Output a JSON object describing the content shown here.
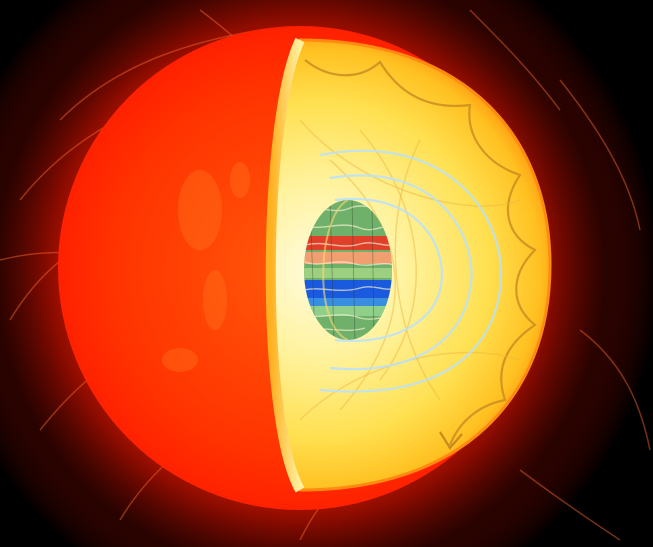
{
  "image": {
    "subject": "star-cutaway-illustration",
    "colors": {
      "space": "#000000",
      "corona_outer": "#3a0500",
      "surface_red": "#ff2a00",
      "surface_orange": "#ff5a0a",
      "interior_pale": "#fff6b0",
      "interior_yellow": "#ffd030",
      "interior_deep": "#ffb010",
      "convection_line": "#c88a20",
      "core_green": "#6fb06a",
      "core_red": "#e0402a",
      "core_blue": "#1a5adf",
      "field_line": "#b8e0ff"
    },
    "icons": [
      "arrow-head-icon"
    ]
  }
}
